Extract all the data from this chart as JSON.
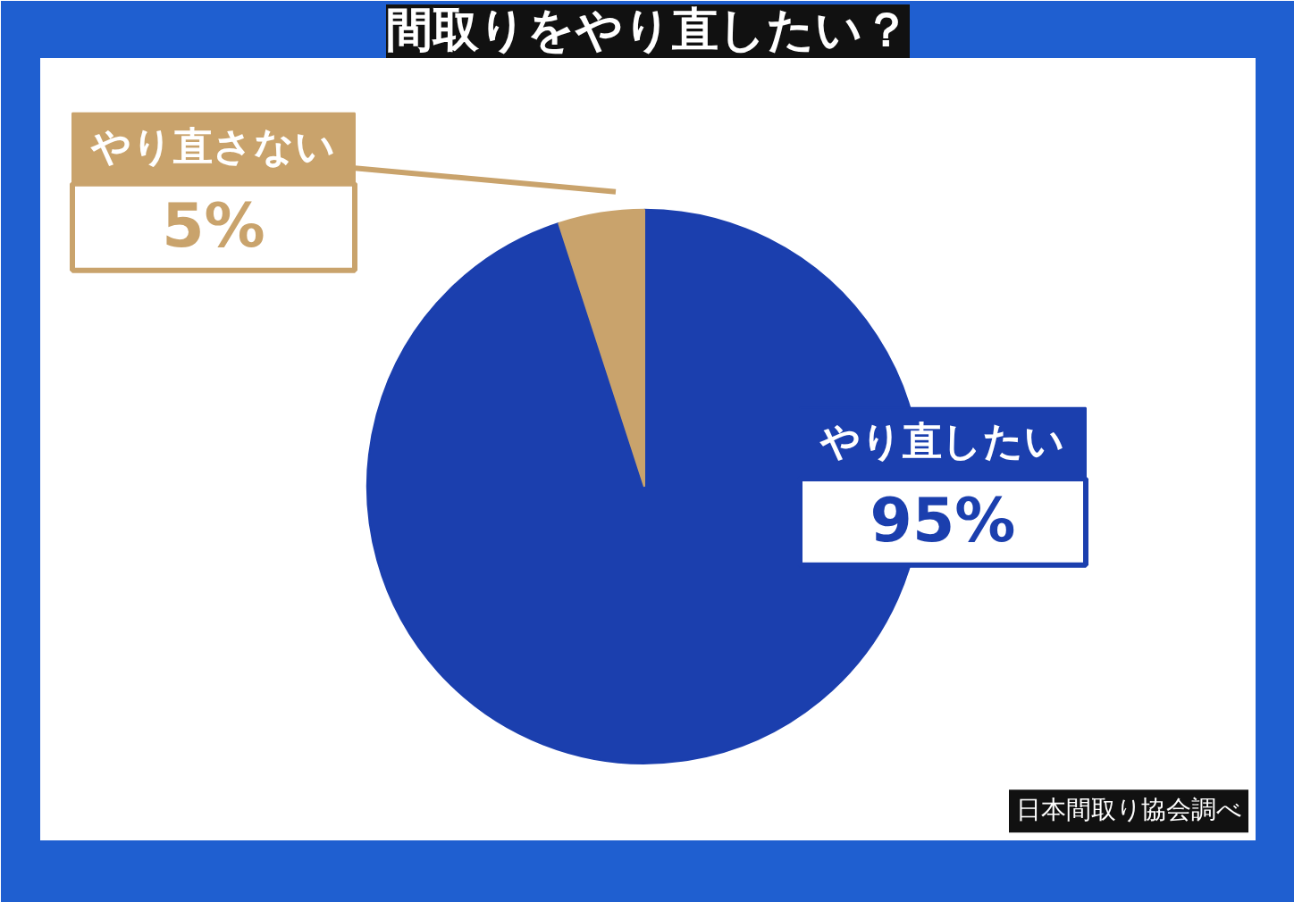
{
  "chart_data": {
    "type": "pie",
    "title": "間取りをやり直したい？",
    "categories": [
      "やり直したい",
      "やり直さない"
    ],
    "values": [
      95,
      5
    ],
    "colors": [
      "#1b3fae",
      "#c9a36c"
    ],
    "value_labels": [
      "95%",
      "5%"
    ],
    "annotations": [
      "日本間取り協会調べ"
    ]
  }
}
